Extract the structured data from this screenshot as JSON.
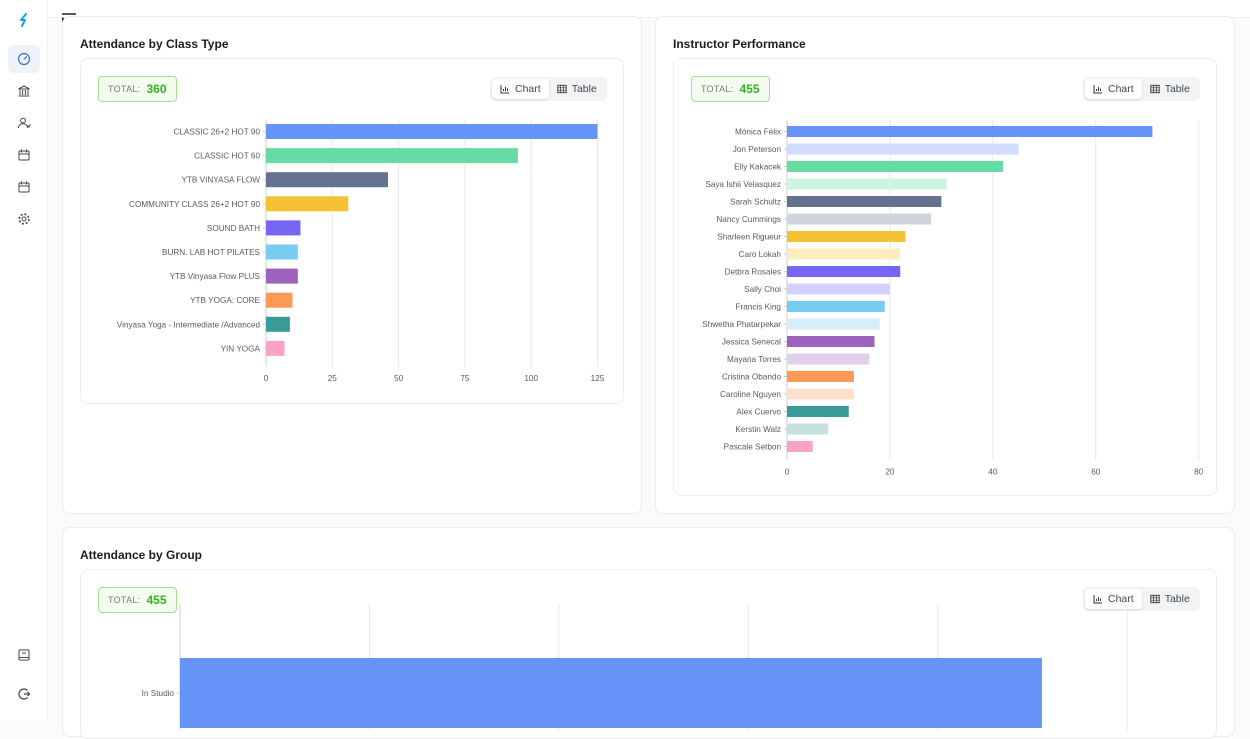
{
  "colors": {
    "accent": "#1aa1e0",
    "total_green": "#37b11e",
    "grid": "#e6e8eb"
  },
  "sidebar": {
    "items": [
      {
        "icon": "logo-icon"
      },
      {
        "icon": "dashboard-icon",
        "active": true
      },
      {
        "icon": "bank-icon"
      },
      {
        "icon": "users-icon"
      },
      {
        "icon": "calendar-icon"
      },
      {
        "icon": "calendar-icon"
      },
      {
        "icon": "gear-icon"
      },
      {
        "icon": "report-icon"
      },
      {
        "icon": "logout-icon"
      }
    ]
  },
  "cards": {
    "class_type": {
      "title": "Attendance by Class Type",
      "total_label": "TOTAL:",
      "total_value": "360"
    },
    "instructor": {
      "title": "Instructor Performance",
      "total_label": "TOTAL:",
      "total_value": "455"
    },
    "group": {
      "title": "Attendance by Group",
      "total_label": "TOTAL:",
      "total_value": "455"
    }
  },
  "toggle": {
    "chart_label": "Chart",
    "table_label": "Table"
  },
  "chart_data": [
    {
      "type": "bar",
      "orientation": "horizontal",
      "categories": [
        "CLASSIC 26+2 HOT 90",
        "CLASSIC HOT 60",
        "YTB VINYASA FLOW",
        "COMMUNITY CLASS 26+2 HOT 90",
        "SOUND BATH",
        "BURN. LAB HOT PILATES",
        "YTB Vinyasa Flow PLUS",
        "YTB YOGA: CORE",
        "Vinyasa Yoga - Intermediate /Advanced",
        "YIN YOGA"
      ],
      "values": [
        125,
        95,
        46,
        31,
        13,
        12,
        12,
        10,
        9,
        7
      ],
      "colors": [
        "#6694f6",
        "#66dba3",
        "#65728f",
        "#f5c234",
        "#7765f4",
        "#76cdef",
        "#9c62bd",
        "#fb9a55",
        "#3a9a98",
        "#f9a4c7"
      ],
      "xlim": [
        0,
        135
      ],
      "xticks": [
        0,
        25,
        50,
        75,
        100,
        125
      ],
      "grid": true
    },
    {
      "type": "bar",
      "orientation": "horizontal",
      "categories": [
        "Mónica Félix",
        "Jon Peterson",
        "Elly Kakacek",
        "Saya Ishii Velasquez",
        "Sarah Schultz",
        "Nancy Cummings",
        "Sharleen Rigueur",
        "Caro Lokah",
        "Detbra Rosales",
        "Sally Choi",
        "Francis King",
        "Shwetha Phatarpekar",
        "Jessica Senecal",
        "Mayana Torres",
        "Cristina Obando",
        "Caroline Nguyen",
        "Alex Cuervo",
        "Kerstin Walz",
        "Pascale Setbon"
      ],
      "values": [
        71,
        45,
        42,
        31,
        30,
        28,
        23,
        22,
        22,
        20,
        19,
        18,
        17,
        16,
        13,
        13,
        12,
        8,
        5
      ],
      "colors": [
        "#6694f6",
        "#cfdcfb",
        "#66dba3",
        "#cdf3e1",
        "#65728f",
        "#d0d4dc",
        "#f5c234",
        "#fcedc1",
        "#7765f4",
        "#d6d0fc",
        "#76cdef",
        "#d5eefa",
        "#9c62bd",
        "#e0d0eb",
        "#fb9a55",
        "#fee1cc",
        "#3a9a98",
        "#c4e1e0",
        "#f9a4c7"
      ],
      "xlim": [
        0,
        82
      ],
      "xticks": [
        0,
        20,
        40,
        60,
        80
      ],
      "grid": true
    },
    {
      "type": "bar",
      "orientation": "horizontal",
      "categories": [
        "In Studio"
      ],
      "values": [
        455
      ],
      "colors": [
        "#6694f6"
      ],
      "grid": true
    }
  ]
}
